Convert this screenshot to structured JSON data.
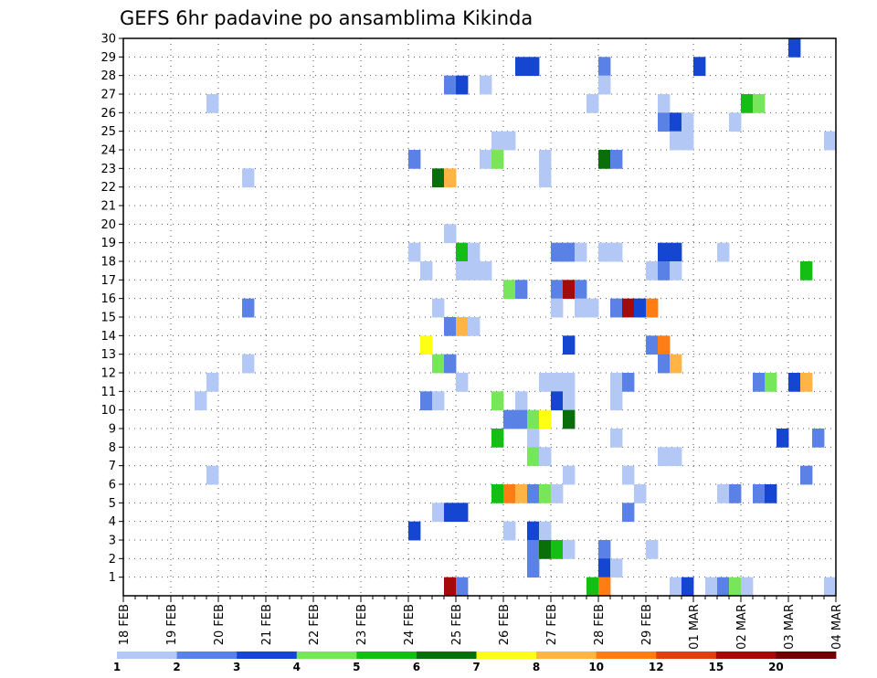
{
  "chart_data": {
    "type": "heatmap",
    "title": "GEFS 6hr padavine po ansamblima Kikinda",
    "xlabel": "",
    "ylabel": "",
    "ylim": [
      0,
      30
    ],
    "y_ticks": [
      "1",
      "2",
      "3",
      "4",
      "5",
      "6",
      "7",
      "8",
      "9",
      "10",
      "11",
      "12",
      "13",
      "14",
      "15",
      "16",
      "17",
      "18",
      "19",
      "20",
      "21",
      "22",
      "23",
      "24",
      "25",
      "26",
      "27",
      "28",
      "29",
      "30"
    ],
    "x_range": [
      0,
      60
    ],
    "x_ticks": [
      {
        "label": "18 FEB",
        "step": 0
      },
      {
        "label": "19 FEB",
        "step": 4
      },
      {
        "label": "20 FEB",
        "step": 8
      },
      {
        "label": "21 FEB",
        "step": 12
      },
      {
        "label": "22 FEB",
        "step": 16
      },
      {
        "label": "23 FEB",
        "step": 20
      },
      {
        "label": "24 FEB",
        "step": 24
      },
      {
        "label": "25 FEB",
        "step": 28
      },
      {
        "label": "26 FEB",
        "step": 32
      },
      {
        "label": "27 FEB",
        "step": 36
      },
      {
        "label": "28 FEB",
        "step": 40
      },
      {
        "label": "29 FEB",
        "step": 44
      },
      {
        "label": "01 MAR",
        "step": 48
      },
      {
        "label": "02 MAR",
        "step": 52
      },
      {
        "label": "03 MAR",
        "step": 56
      },
      {
        "label": "04 MAR",
        "step": 60
      }
    ],
    "legend": {
      "placement": "bottom",
      "labels": [
        "1",
        "2",
        "3",
        "4",
        "5",
        "6",
        "7",
        "8",
        "10",
        "12",
        "15",
        "20"
      ],
      "colors": [
        "#b4c8f5",
        "#5a82e6",
        "#1446d2",
        "#78e65a",
        "#14be14",
        "#0a6e0a",
        "#ffff14",
        "#ffb446",
        "#ff7d14",
        "#e63c14",
        "#a50a0a",
        "#6e0000"
      ]
    },
    "cells": [
      [
        56,
        30,
        3
      ],
      [
        33,
        29,
        3
      ],
      [
        34,
        29,
        3
      ],
      [
        40,
        29,
        2
      ],
      [
        48,
        29,
        3
      ],
      [
        27,
        28,
        2
      ],
      [
        28,
        28,
        3
      ],
      [
        30,
        28,
        1
      ],
      [
        40,
        28,
        1
      ],
      [
        7,
        27,
        1
      ],
      [
        39,
        27,
        1
      ],
      [
        45,
        27,
        1
      ],
      [
        52,
        27,
        5
      ],
      [
        53,
        27,
        4
      ],
      [
        45,
        26,
        2
      ],
      [
        46,
        26,
        3
      ],
      [
        47,
        26,
        1
      ],
      [
        51,
        26,
        1
      ],
      [
        31,
        25,
        1
      ],
      [
        32,
        25,
        1
      ],
      [
        46,
        25,
        1
      ],
      [
        47,
        25,
        1
      ],
      [
        59,
        25,
        1
      ],
      [
        24,
        24,
        2
      ],
      [
        30,
        24,
        1
      ],
      [
        31,
        24,
        4
      ],
      [
        35,
        24,
        1
      ],
      [
        40,
        24,
        6
      ],
      [
        41,
        24,
        2
      ],
      [
        10,
        23,
        1
      ],
      [
        26,
        23,
        6
      ],
      [
        27,
        23,
        8
      ],
      [
        35,
        23,
        1
      ],
      [
        27,
        20,
        1
      ],
      [
        24,
        19,
        1
      ],
      [
        28,
        19,
        5
      ],
      [
        29,
        19,
        1
      ],
      [
        36,
        19,
        2
      ],
      [
        37,
        19,
        2
      ],
      [
        38,
        19,
        1
      ],
      [
        40,
        19,
        1
      ],
      [
        41,
        19,
        1
      ],
      [
        45,
        19,
        3
      ],
      [
        46,
        19,
        3
      ],
      [
        50,
        19,
        1
      ],
      [
        25,
        18,
        1
      ],
      [
        28,
        18,
        1
      ],
      [
        29,
        18,
        1
      ],
      [
        30,
        18,
        1
      ],
      [
        44,
        18,
        1
      ],
      [
        45,
        18,
        2
      ],
      [
        46,
        18,
        1
      ],
      [
        57,
        18,
        5
      ],
      [
        32,
        17,
        4
      ],
      [
        33,
        17,
        2
      ],
      [
        36,
        17,
        2
      ],
      [
        37,
        17,
        11
      ],
      [
        38,
        17,
        2
      ],
      [
        10,
        16,
        2
      ],
      [
        26,
        16,
        1
      ],
      [
        36,
        16,
        1
      ],
      [
        38,
        16,
        1
      ],
      [
        39,
        16,
        1
      ],
      [
        41,
        16,
        2
      ],
      [
        42,
        16,
        11
      ],
      [
        43,
        16,
        3
      ],
      [
        44,
        16,
        9
      ],
      [
        27,
        15,
        2
      ],
      [
        28,
        15,
        8
      ],
      [
        29,
        15,
        1
      ],
      [
        25,
        14,
        7
      ],
      [
        37,
        14,
        3
      ],
      [
        44,
        14,
        2
      ],
      [
        45,
        14,
        9
      ],
      [
        10,
        13,
        1
      ],
      [
        26,
        13,
        4
      ],
      [
        27,
        13,
        2
      ],
      [
        45,
        13,
        2
      ],
      [
        46,
        13,
        8
      ],
      [
        7,
        12,
        1
      ],
      [
        28,
        12,
        1
      ],
      [
        35,
        12,
        1
      ],
      [
        36,
        12,
        1
      ],
      [
        37,
        12,
        1
      ],
      [
        41,
        12,
        1
      ],
      [
        42,
        12,
        2
      ],
      [
        53,
        12,
        2
      ],
      [
        54,
        12,
        4
      ],
      [
        56,
        12,
        3
      ],
      [
        57,
        12,
        8
      ],
      [
        6,
        11,
        1
      ],
      [
        25,
        11,
        2
      ],
      [
        26,
        11,
        1
      ],
      [
        31,
        11,
        4
      ],
      [
        33,
        11,
        1
      ],
      [
        36,
        11,
        3
      ],
      [
        37,
        11,
        1
      ],
      [
        41,
        11,
        1
      ],
      [
        32,
        10,
        2
      ],
      [
        33,
        10,
        2
      ],
      [
        34,
        10,
        4
      ],
      [
        35,
        10,
        7
      ],
      [
        37,
        10,
        6
      ],
      [
        31,
        9,
        5
      ],
      [
        34,
        9,
        1
      ],
      [
        41,
        9,
        1
      ],
      [
        55,
        9,
        3
      ],
      [
        58,
        9,
        2
      ],
      [
        34,
        8,
        4
      ],
      [
        35,
        8,
        1
      ],
      [
        45,
        8,
        1
      ],
      [
        46,
        8,
        1
      ],
      [
        7,
        7,
        1
      ],
      [
        37,
        7,
        1
      ],
      [
        42,
        7,
        1
      ],
      [
        57,
        7,
        2
      ],
      [
        31,
        6,
        5
      ],
      [
        32,
        6,
        9
      ],
      [
        33,
        6,
        8
      ],
      [
        34,
        6,
        2
      ],
      [
        35,
        6,
        4
      ],
      [
        36,
        6,
        1
      ],
      [
        43,
        6,
        1
      ],
      [
        50,
        6,
        1
      ],
      [
        51,
        6,
        2
      ],
      [
        53,
        6,
        2
      ],
      [
        54,
        6,
        3
      ],
      [
        26,
        5,
        1
      ],
      [
        27,
        5,
        3
      ],
      [
        28,
        5,
        3
      ],
      [
        42,
        5,
        2
      ],
      [
        24,
        4,
        3
      ],
      [
        32,
        4,
        1
      ],
      [
        34,
        4,
        3
      ],
      [
        35,
        4,
        1
      ],
      [
        34,
        3,
        2
      ],
      [
        35,
        3,
        6
      ],
      [
        36,
        3,
        5
      ],
      [
        37,
        3,
        1
      ],
      [
        40,
        3,
        2
      ],
      [
        44,
        3,
        1
      ],
      [
        34,
        2,
        2
      ],
      [
        40,
        2,
        3
      ],
      [
        41,
        2,
        1
      ],
      [
        27,
        1,
        11
      ],
      [
        28,
        1,
        2
      ],
      [
        39,
        1,
        5
      ],
      [
        40,
        1,
        9
      ],
      [
        46,
        1,
        1
      ],
      [
        47,
        1,
        3
      ],
      [
        49,
        1,
        1
      ],
      [
        50,
        1,
        2
      ],
      [
        51,
        1,
        4
      ],
      [
        52,
        1,
        1
      ],
      [
        59,
        1,
        1
      ]
    ]
  }
}
